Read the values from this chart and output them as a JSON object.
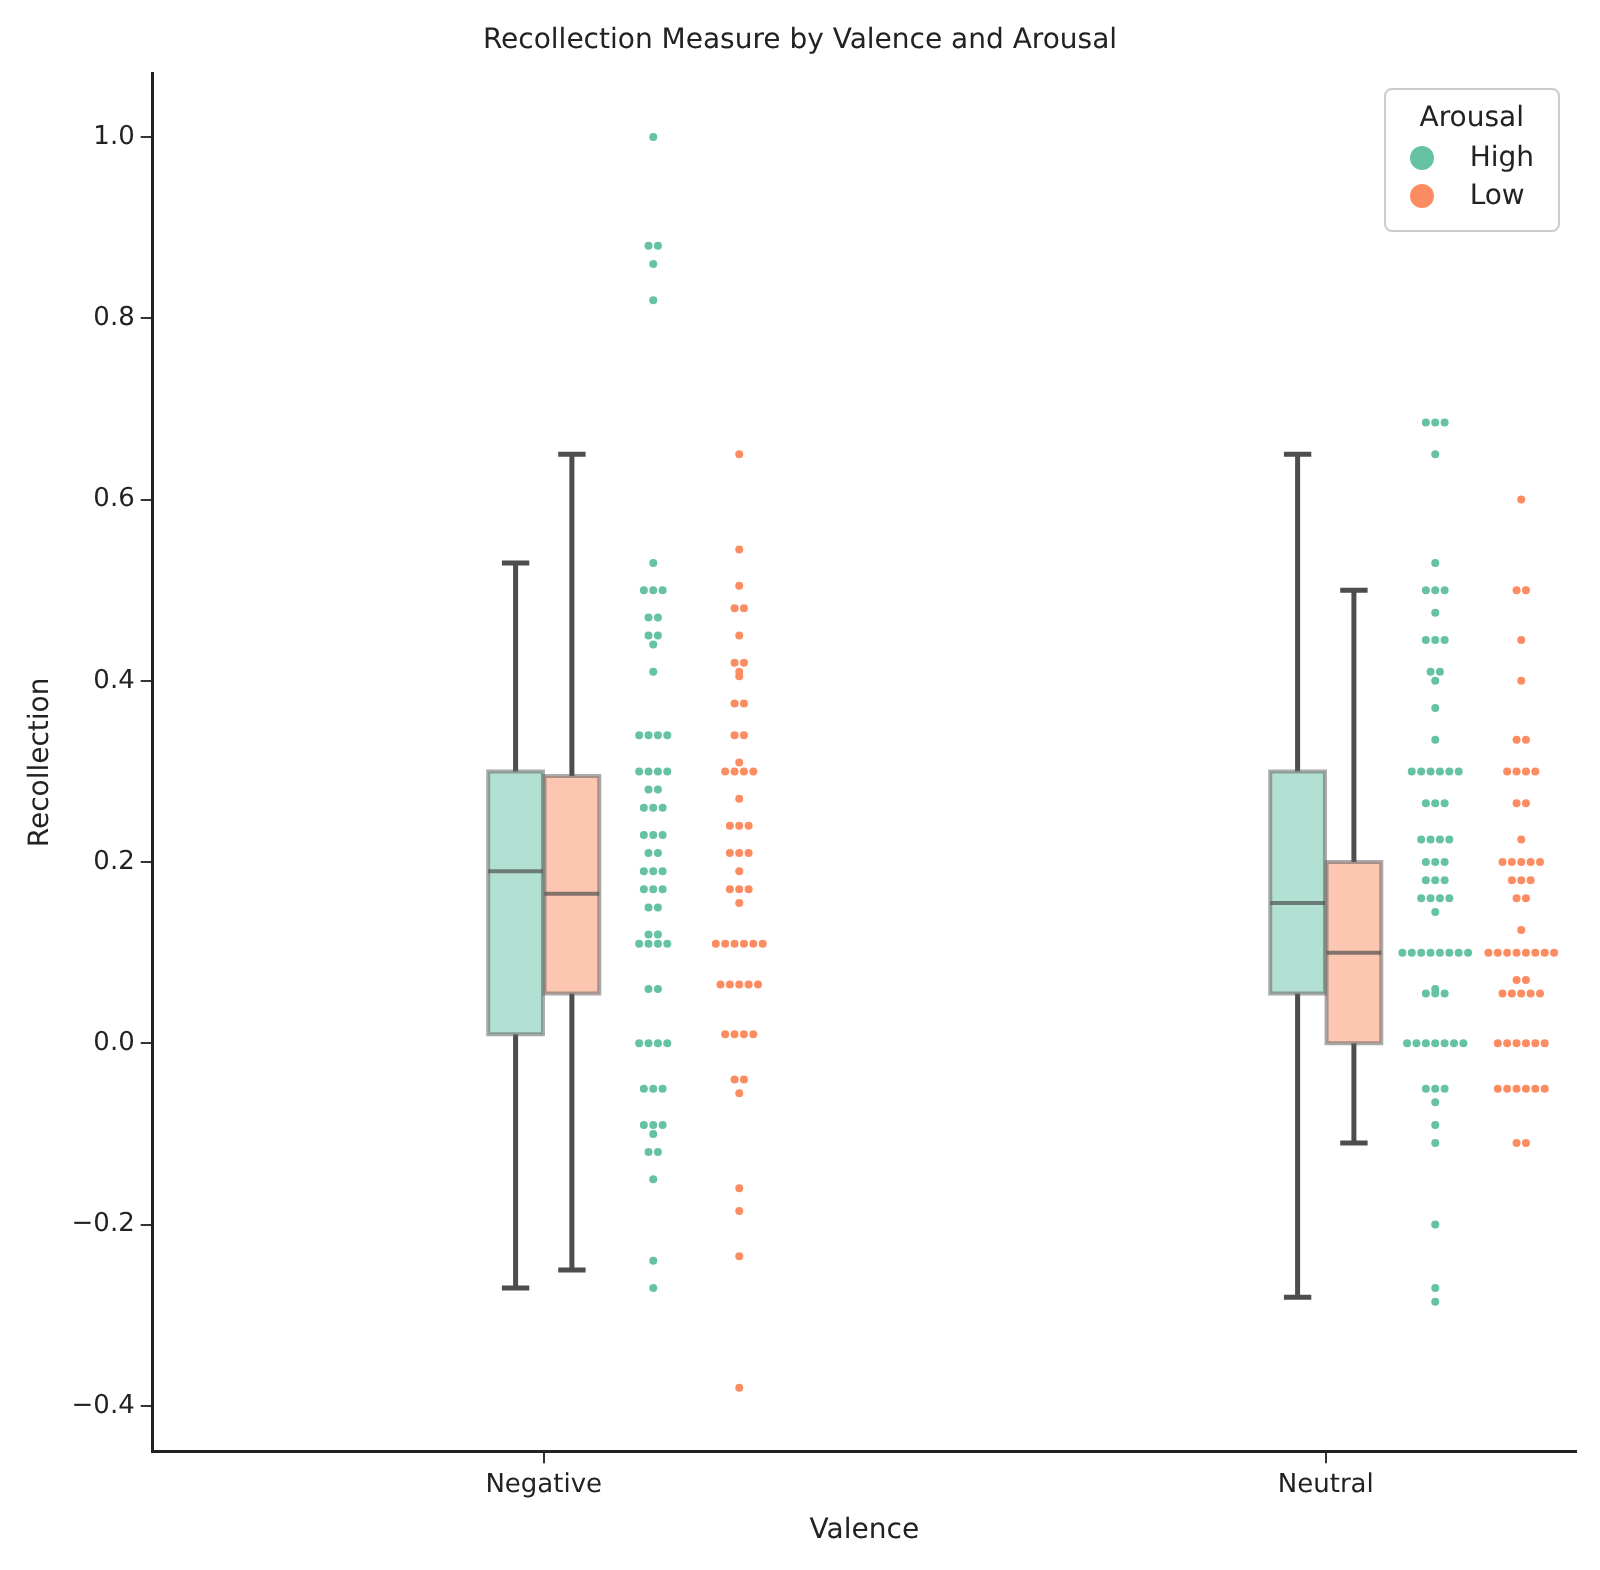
{
  "chart_data": {
    "type": "box",
    "title": "Recollection Measure by Valence and Arousal",
    "xlabel": "Valence",
    "ylabel": "Recollection",
    "legend_title": "Arousal",
    "legend": "top right",
    "grid": false,
    "categories": [
      "Negative",
      "Neutral"
    ],
    "ylim": [
      -0.45,
      1.07
    ],
    "yticks": [
      {
        "value": -0.4,
        "label": "−0.4"
      },
      {
        "value": -0.2,
        "label": "−0.2"
      },
      {
        "value": 0,
        "label": "0.0"
      },
      {
        "value": 0.2,
        "label": "0.2"
      },
      {
        "value": 0.4,
        "label": "0.4"
      },
      {
        "value": 0.6,
        "label": "0.6"
      },
      {
        "value": 0.8,
        "label": "0.8"
      },
      {
        "value": 1,
        "label": "1.0"
      }
    ],
    "series": [
      {
        "name": "High",
        "color": "#66c2a5",
        "boxes": [
          {
            "low": -0.27,
            "q1": 0.01,
            "median": 0.19,
            "q3": 0.3,
            "high": 0.53
          },
          {
            "low": -0.28,
            "q1": 0.055,
            "median": 0.155,
            "q3": 0.3,
            "high": 0.65
          }
        ]
      },
      {
        "name": "Low",
        "color": "#fc8d62",
        "boxes": [
          {
            "low": -0.25,
            "q1": 0.055,
            "median": 0.165,
            "q3": 0.295,
            "high": 0.65
          },
          {
            "low": -0.11,
            "q1": 0,
            "median": 0.1,
            "q3": 0.2,
            "high": 0.5
          }
        ]
      },
      {
        "type": "scatter",
        "color": "#66c2a5",
        "x": [
          "Negative",
          "Negative",
          "Negative",
          "Negative",
          "Negative",
          "Negative",
          "Negative",
          "Negative",
          "Negative",
          "Negative",
          "Negative",
          "Negative",
          "Negative",
          "Negative",
          "Negative",
          "Negative",
          "Negative",
          "Negative",
          "Negative",
          "Negative",
          "Negative",
          "Negative",
          "Negative",
          "Negative",
          "Negative",
          "Negative",
          "Negative",
          "Negative",
          "Negative",
          "Negative",
          "Negative",
          "Negative",
          "Negative",
          "Negative",
          "Negative",
          "Negative",
          "Negative",
          "Negative",
          "Negative",
          "Negative",
          "Negative",
          "Negative",
          "Negative",
          "Negative",
          "Negative",
          "Negative",
          "Negative",
          "Negative",
          "Negative",
          "Negative",
          "Negative",
          "Negative",
          "Negative",
          "Negative",
          "Negative",
          "Negative",
          "Negative",
          "Negative",
          "Negative",
          "Negative",
          "Negative",
          "Negative",
          "Negative",
          "Negative",
          "Negative"
        ],
        "values": [
          1.0,
          0.88,
          0.88,
          0.86,
          0.82,
          0.53,
          0.5,
          0.5,
          0.5,
          0.47,
          0.47,
          0.45,
          0.45,
          0.44,
          0.41,
          0.34,
          0.34,
          0.34,
          0.34,
          0.3,
          0.3,
          0.3,
          0.3,
          0.28,
          0.28,
          0.26,
          0.26,
          0.26,
          0.23,
          0.23,
          0.23,
          0.21,
          0.21,
          0.19,
          0.19,
          0.19,
          0.17,
          0.17,
          0.17,
          0.15,
          0.15,
          0.12,
          0.12,
          0.11,
          0.11,
          0.11,
          0.11,
          0.06,
          0.06,
          0,
          0,
          0,
          0,
          -0.05,
          -0.05,
          -0.05,
          -0.09,
          -0.09,
          -0.09,
          -0.1,
          -0.12,
          -0.12,
          -0.15,
          -0.24,
          -0.27
        ]
      },
      {
        "type": "scatter",
        "color": "#fc8d62",
        "x": [
          "Negative",
          "Negative",
          "Negative",
          "Negative",
          "Negative",
          "Negative",
          "Negative",
          "Negative",
          "Negative",
          "Negative",
          "Negative",
          "Negative",
          "Negative",
          "Negative",
          "Negative",
          "Negative",
          "Negative",
          "Negative",
          "Negative",
          "Negative",
          "Negative",
          "Negative",
          "Negative",
          "Negative",
          "Negative",
          "Negative",
          "Negative",
          "Negative",
          "Negative",
          "Negative",
          "Negative",
          "Negative",
          "Negative",
          "Negative",
          "Negative",
          "Negative",
          "Negative",
          "Negative",
          "Negative",
          "Negative",
          "Negative",
          "Negative",
          "Negative",
          "Negative",
          "Negative",
          "Negative",
          "Negative",
          "Negative",
          "Negative",
          "Negative",
          "Negative",
          "Negative",
          "Negative"
        ],
        "values": [
          0.65,
          0.545,
          0.505,
          0.48,
          0.48,
          0.45,
          0.42,
          0.42,
          0.41,
          0.405,
          0.375,
          0.375,
          0.34,
          0.34,
          0.31,
          0.3,
          0.3,
          0.3,
          0.3,
          0.27,
          0.24,
          0.24,
          0.24,
          0.21,
          0.21,
          0.21,
          0.19,
          0.17,
          0.17,
          0.17,
          0.155,
          0.11,
          0.11,
          0.11,
          0.11,
          0.11,
          0.11,
          0.065,
          0.065,
          0.065,
          0.065,
          0.065,
          0.01,
          0.01,
          0.01,
          0.01,
          -0.04,
          -0.04,
          -0.055,
          -0.16,
          -0.185,
          -0.235,
          -0.38
        ]
      },
      {
        "type": "scatter",
        "color": "#66c2a5",
        "x": [
          "Neutral",
          "Neutral",
          "Neutral",
          "Neutral",
          "Neutral",
          "Neutral",
          "Neutral",
          "Neutral",
          "Neutral",
          "Neutral",
          "Neutral",
          "Neutral",
          "Neutral",
          "Neutral",
          "Neutral",
          "Neutral",
          "Neutral",
          "Neutral",
          "Neutral",
          "Neutral",
          "Neutral",
          "Neutral",
          "Neutral",
          "Neutral",
          "Neutral",
          "Neutral",
          "Neutral",
          "Neutral",
          "Neutral",
          "Neutral",
          "Neutral",
          "Neutral",
          "Neutral",
          "Neutral",
          "Neutral",
          "Neutral",
          "Neutral",
          "Neutral",
          "Neutral",
          "Neutral",
          "Neutral",
          "Neutral",
          "Neutral",
          "Neutral",
          "Neutral",
          "Neutral",
          "Neutral",
          "Neutral",
          "Neutral",
          "Neutral",
          "Neutral",
          "Neutral",
          "Neutral",
          "Neutral",
          "Neutral",
          "Neutral",
          "Neutral",
          "Neutral",
          "Neutral",
          "Neutral",
          "Neutral",
          "Neutral",
          "Neutral",
          "Neutral",
          "Neutral",
          "Neutral",
          "Neutral",
          "Neutral",
          "Neutral"
        ],
        "values": [
          0.685,
          0.685,
          0.685,
          0.65,
          0.53,
          0.5,
          0.5,
          0.5,
          0.475,
          0.445,
          0.445,
          0.445,
          0.41,
          0.41,
          0.4,
          0.37,
          0.335,
          0.3,
          0.3,
          0.3,
          0.3,
          0.3,
          0.3,
          0.265,
          0.265,
          0.265,
          0.225,
          0.225,
          0.225,
          0.225,
          0.2,
          0.2,
          0.2,
          0.18,
          0.18,
          0.18,
          0.16,
          0.16,
          0.16,
          0.16,
          0.145,
          0.1,
          0.1,
          0.1,
          0.1,
          0.1,
          0.1,
          0.1,
          0.1,
          0.06,
          0.055,
          0.055,
          0.055,
          0,
          0,
          0,
          0,
          0,
          0,
          0,
          -0.05,
          -0.05,
          -0.05,
          -0.065,
          -0.09,
          -0.11,
          -0.2,
          -0.27,
          -0.285
        ]
      },
      {
        "type": "scatter",
        "color": "#fc8d62",
        "x": [
          "Neutral",
          "Neutral",
          "Neutral",
          "Neutral",
          "Neutral",
          "Neutral",
          "Neutral",
          "Neutral",
          "Neutral",
          "Neutral",
          "Neutral",
          "Neutral",
          "Neutral",
          "Neutral",
          "Neutral",
          "Neutral",
          "Neutral",
          "Neutral",
          "Neutral",
          "Neutral",
          "Neutral",
          "Neutral",
          "Neutral",
          "Neutral",
          "Neutral",
          "Neutral",
          "Neutral",
          "Neutral",
          "Neutral",
          "Neutral",
          "Neutral",
          "Neutral",
          "Neutral",
          "Neutral",
          "Neutral",
          "Neutral",
          "Neutral",
          "Neutral",
          "Neutral",
          "Neutral",
          "Neutral",
          "Neutral",
          "Neutral",
          "Neutral",
          "Neutral",
          "Neutral",
          "Neutral",
          "Neutral",
          "Neutral",
          "Neutral",
          "Neutral",
          "Neutral",
          "Neutral",
          "Neutral"
        ],
        "values": [
          0.6,
          0.5,
          0.5,
          0.445,
          0.4,
          0.335,
          0.335,
          0.3,
          0.3,
          0.3,
          0.3,
          0.265,
          0.265,
          0.225,
          0.2,
          0.2,
          0.2,
          0.2,
          0.2,
          0.18,
          0.18,
          0.18,
          0.16,
          0.16,
          0.125,
          0.1,
          0.1,
          0.1,
          0.1,
          0.1,
          0.1,
          0.1,
          0.1,
          0.07,
          0.07,
          0.055,
          0.055,
          0.055,
          0.055,
          0.055,
          0,
          0,
          0,
          0,
          0,
          0,
          -0.05,
          -0.05,
          -0.05,
          -0.05,
          -0.05,
          -0.05,
          -0.11,
          -0.11
        ]
      }
    ]
  }
}
